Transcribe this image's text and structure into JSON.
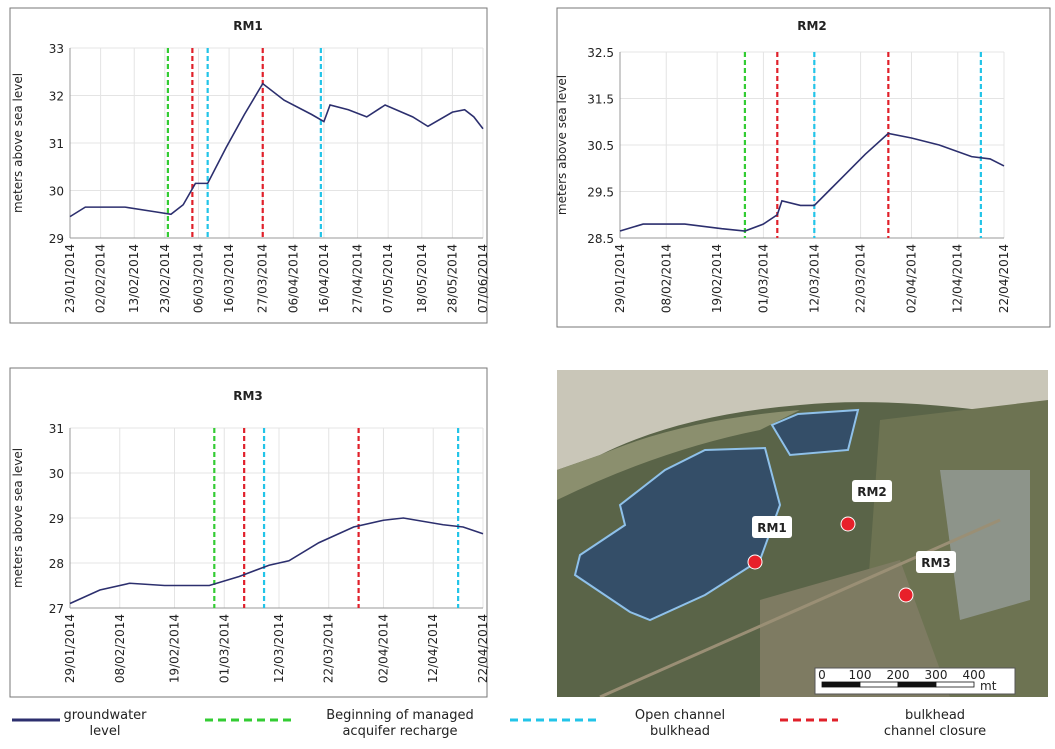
{
  "chart_data": [
    {
      "type": "line",
      "title": "RM1",
      "y_label": "meters above sea level",
      "xlim": [
        "23/01/2014",
        "07/06/2014"
      ],
      "xticks": [
        "23/01/2014",
        "02/02/2014",
        "13/02/2014",
        "23/02/2014",
        "06/03/2014",
        "16/03/2014",
        "27/03/2014",
        "06/04/2014",
        "16/04/2014",
        "27/04/2014",
        "07/05/2014",
        "18/05/2014",
        "28/05/2014",
        "07/06/2014"
      ],
      "ylim": [
        29,
        33
      ],
      "yticks": [
        29,
        30,
        31,
        32,
        33
      ],
      "grid": true,
      "series": [
        {
          "name": "groundwater level",
          "color": "#2c2f6e",
          "x": [
            "23/01/2014",
            "28/01/2014",
            "10/02/2014",
            "20/02/2014",
            "25/02/2014",
            "01/03/2014",
            "05/03/2014",
            "09/03/2014",
            "15/03/2014",
            "21/03/2014",
            "27/03/2014",
            "03/04/2014",
            "12/04/2014",
            "16/04/2014",
            "18/04/2014",
            "24/04/2014",
            "30/04/2014",
            "06/05/2014",
            "15/05/2014",
            "20/05/2014",
            "28/05/2014",
            "01/06/2014",
            "04/06/2014",
            "07/06/2014"
          ],
          "values": [
            29.45,
            29.65,
            29.65,
            29.55,
            29.5,
            29.7,
            30.15,
            30.15,
            30.9,
            31.6,
            32.25,
            31.9,
            31.6,
            31.45,
            31.8,
            31.7,
            31.55,
            31.8,
            31.55,
            31.35,
            31.65,
            31.7,
            31.55,
            31.3
          ]
        }
      ],
      "events": [
        [
          "24/02/2014"
        ],
        [
          "09/03/2014",
          "15/04/2014"
        ],
        [
          "04/03/2014",
          "27/03/2014"
        ]
      ]
    },
    {
      "type": "line",
      "title": "RM2",
      "y_label": "meters above sea level",
      "xlim": [
        "29/01/2014",
        "22/04/2014"
      ],
      "xticks": [
        "29/01/2014",
        "08/02/2014",
        "19/02/2014",
        "01/03/2014",
        "12/03/2014",
        "22/03/2014",
        "02/04/2014",
        "12/04/2014",
        "22/04/2014"
      ],
      "ylim": [
        28.5,
        32.5
      ],
      "yticks": [
        28.5,
        29.5,
        30.5,
        31.5,
        32.5
      ],
      "grid": true,
      "series": [
        {
          "name": "groundwater level",
          "color": "#2c2f6e",
          "x": [
            "29/01/2014",
            "03/02/2014",
            "12/02/2014",
            "20/02/2014",
            "25/02/2014",
            "01/03/2014",
            "04/03/2014",
            "05/03/2014",
            "09/03/2014",
            "12/03/2014",
            "15/03/2014",
            "19/03/2014",
            "23/03/2014",
            "28/03/2014",
            "02/04/2014",
            "08/04/2014",
            "15/04/2014",
            "19/04/2014",
            "22/04/2014"
          ],
          "values": [
            28.65,
            28.8,
            28.8,
            28.7,
            28.65,
            28.8,
            29.0,
            29.3,
            29.2,
            29.2,
            29.5,
            29.9,
            30.3,
            30.75,
            30.65,
            30.5,
            30.25,
            30.2,
            30.05
          ]
        }
      ],
      "events": [
        [
          "25/02/2014"
        ],
        [
          "12/03/2014",
          "17/04/2014"
        ],
        [
          "04/03/2014",
          "28/03/2014"
        ]
      ]
    },
    {
      "type": "line",
      "title": "RM3",
      "y_label": "meters above sea level",
      "xlim": [
        "29/01/2014",
        "22/04/2014"
      ],
      "xticks": [
        "29/01/2014",
        "08/02/2014",
        "19/02/2014",
        "01/03/2014",
        "12/03/2014",
        "22/03/2014",
        "02/04/2014",
        "12/04/2014",
        "22/04/2014"
      ],
      "ylim": [
        27,
        31
      ],
      "yticks": [
        27,
        28,
        29,
        30,
        31
      ],
      "grid": true,
      "series": [
        {
          "name": "groundwater level",
          "color": "#2c2f6e",
          "x": [
            "29/01/2014",
            "04/02/2014",
            "10/02/2014",
            "17/02/2014",
            "26/02/2014",
            "04/03/2014",
            "10/03/2014",
            "14/03/2014",
            "20/03/2014",
            "27/03/2014",
            "02/04/2014",
            "06/04/2014",
            "14/04/2014",
            "18/04/2014",
            "22/04/2014"
          ],
          "values": [
            27.1,
            27.4,
            27.55,
            27.5,
            27.5,
            27.7,
            27.95,
            28.05,
            28.45,
            28.8,
            28.95,
            29.0,
            28.85,
            28.8,
            28.65
          ]
        }
      ],
      "events": [
        [
          "27/02/2014"
        ],
        [
          "09/03/2014",
          "17/04/2014"
        ],
        [
          "05/03/2014",
          "28/03/2014"
        ]
      ]
    }
  ],
  "legend": [
    {
      "name": "groundwater level",
      "color": "#2c2f6e",
      "style": "solid"
    },
    {
      "name": "Beginning of managed acquifer recharge",
      "color": "#33cc33",
      "style": "dashed"
    },
    {
      "name": "Open channel bulkhead",
      "color": "#22c4e8",
      "style": "dashed"
    },
    {
      "name": "bulkhead channel closure",
      "color": "#e0202a",
      "style": "dashed"
    }
  ],
  "map": {
    "labels": [
      "RM1",
      "RM2",
      "RM3"
    ],
    "scale": [
      0,
      100,
      200,
      300,
      400
    ],
    "unit": "mt"
  }
}
